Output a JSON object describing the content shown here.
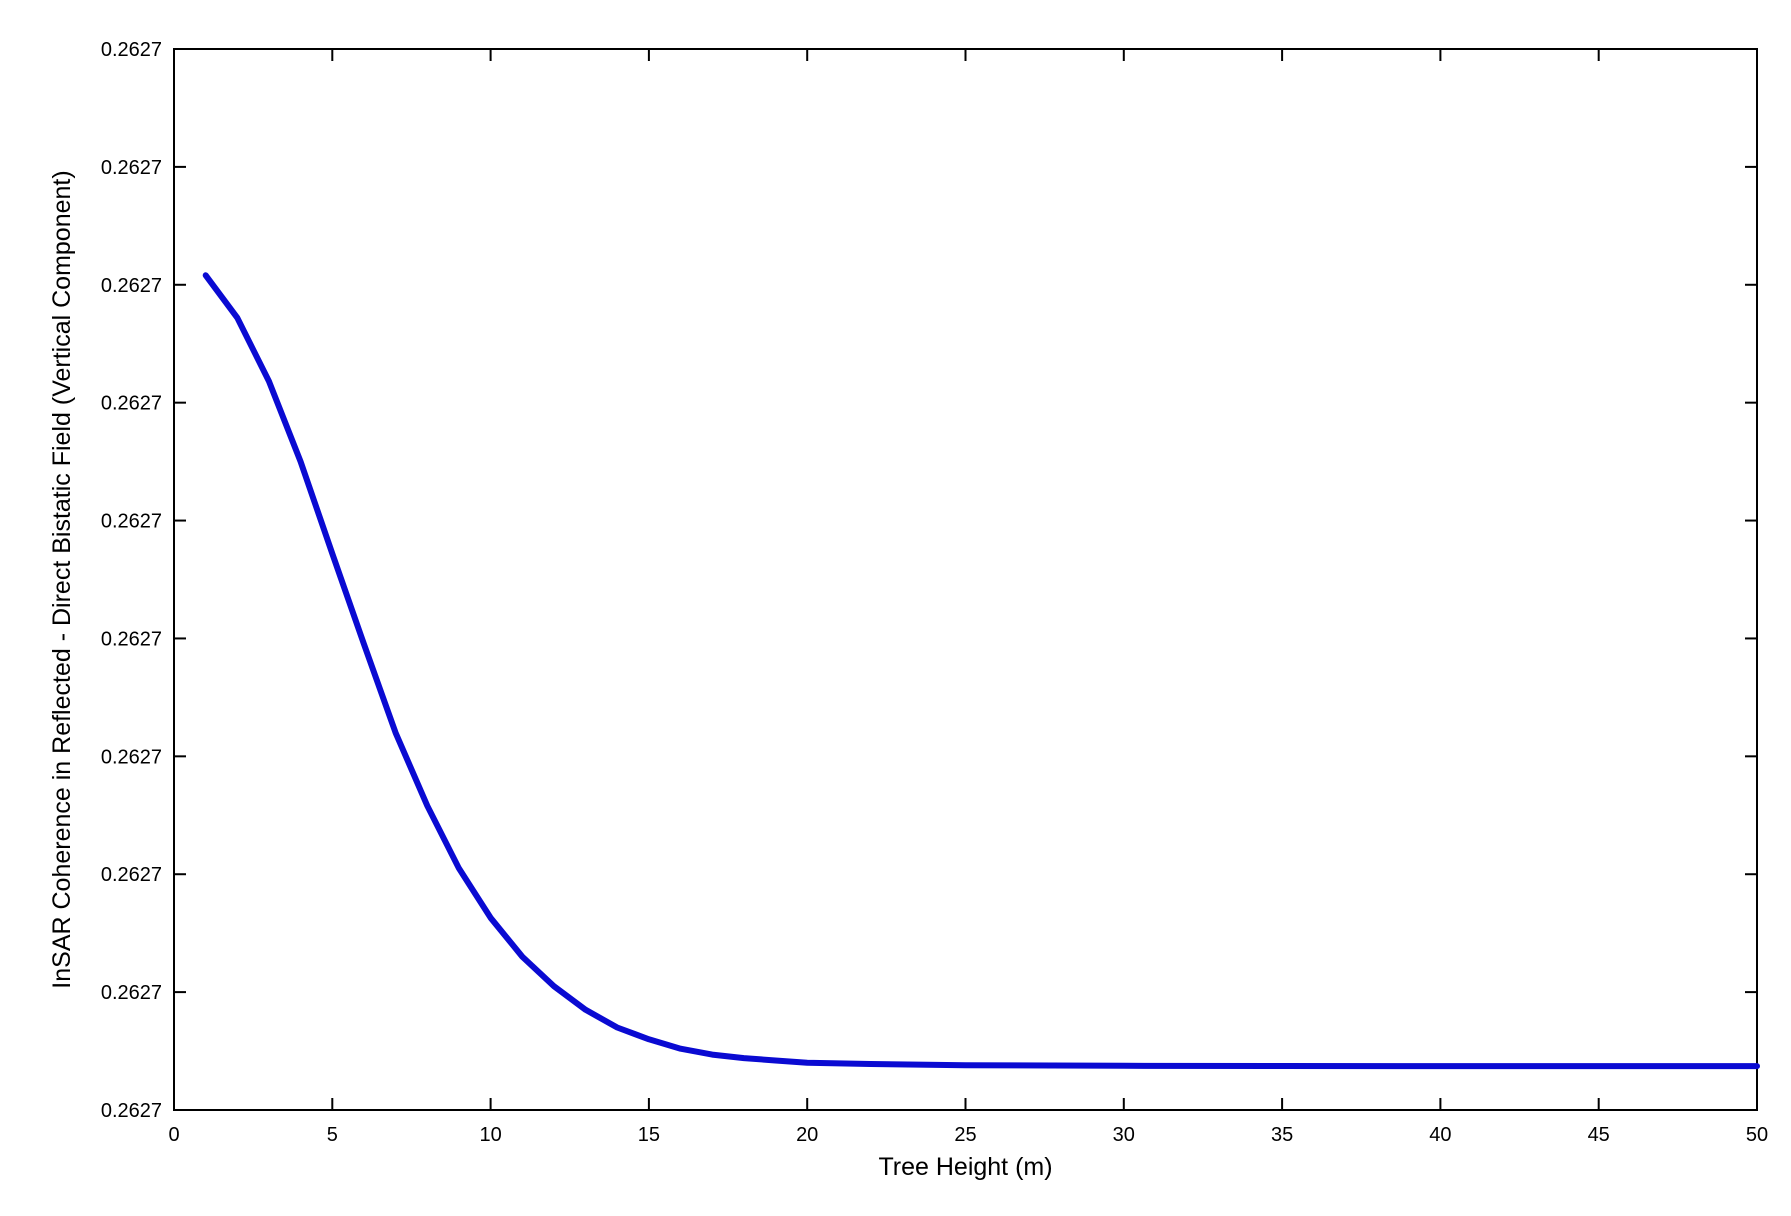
{
  "chart_data": {
    "type": "line",
    "title": "",
    "xlabel": "Tree Height (m)",
    "ylabel": "InSAR Coherence in Reflected - Direct Bistatic Field (Vertical Component)",
    "xlim": [
      0,
      50
    ],
    "ylim": [
      0,
      9
    ],
    "grid": false,
    "legend": "none",
    "x_ticks": [
      0,
      5,
      10,
      15,
      20,
      25,
      30,
      35,
      40,
      45,
      50
    ],
    "x_tick_labels": [
      "0",
      "5",
      "10",
      "15",
      "20",
      "25",
      "30",
      "35",
      "40",
      "45",
      "50"
    ],
    "y_ticks": [
      0,
      1,
      2,
      3,
      4,
      5,
      6,
      7,
      8,
      9
    ],
    "y_tick_labels": [
      "0.2627",
      "0.2627",
      "0.2627",
      "0.2627",
      "0.2627",
      "0.2627",
      "0.2627",
      "0.2627",
      "0.2627",
      "0.2627"
    ],
    "series": [
      {
        "color": "#0a0ad2",
        "x": [
          1,
          2,
          3,
          4,
          5,
          6,
          7,
          8,
          9,
          10,
          11,
          12,
          13,
          14,
          15,
          16,
          17,
          18,
          19,
          20,
          22,
          25,
          30,
          35,
          40,
          45,
          50
        ],
        "y": [
          7.08,
          6.72,
          6.18,
          5.5,
          4.72,
          3.95,
          3.2,
          2.58,
          2.05,
          1.63,
          1.3,
          1.05,
          0.85,
          0.7,
          0.6,
          0.52,
          0.47,
          0.44,
          0.42,
          0.4,
          0.39,
          0.38,
          0.375,
          0.373,
          0.372,
          0.372,
          0.372
        ]
      }
    ]
  }
}
